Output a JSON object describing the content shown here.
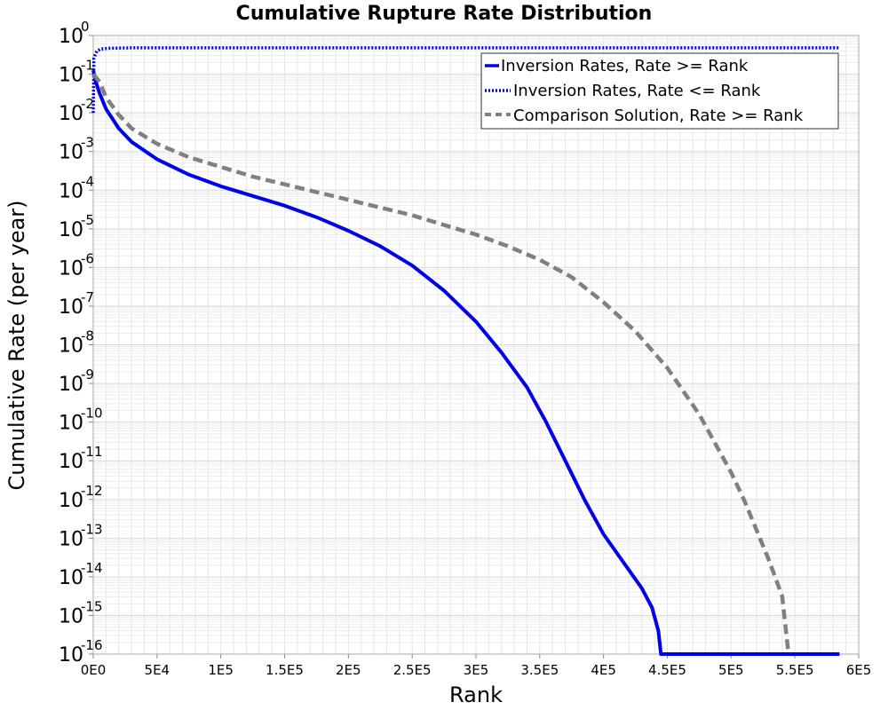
{
  "chart_data": {
    "type": "line",
    "title": "Cumulative Rupture Rate Distribution",
    "xlabel": "Rank",
    "ylabel": "Cumulative Rate (per year)",
    "xlim": [
      0,
      600000
    ],
    "ylim": [
      1e-16,
      1
    ],
    "yscale": "log",
    "grid": true,
    "legend_position": "top-right",
    "x_ticks": [
      {
        "value": 0,
        "label": "0E0"
      },
      {
        "value": 50000,
        "label": "5E4"
      },
      {
        "value": 100000,
        "label": "1E5"
      },
      {
        "value": 150000,
        "label": "1.5E5"
      },
      {
        "value": 200000,
        "label": "2E5"
      },
      {
        "value": 250000,
        "label": "2.5E5"
      },
      {
        "value": 300000,
        "label": "3E5"
      },
      {
        "value": 350000,
        "label": "3.5E5"
      },
      {
        "value": 400000,
        "label": "4E5"
      },
      {
        "value": 450000,
        "label": "4.5E5"
      },
      {
        "value": 500000,
        "label": "5E5"
      },
      {
        "value": 550000,
        "label": "5.5E5"
      },
      {
        "value": 600000,
        "label": "6E5"
      }
    ],
    "y_ticks": [
      {
        "value": 0,
        "base": "10",
        "exp": "0"
      },
      {
        "value": -1,
        "base": "10",
        "exp": "-1"
      },
      {
        "value": -2,
        "base": "10",
        "exp": "-2"
      },
      {
        "value": -3,
        "base": "10",
        "exp": "-3"
      },
      {
        "value": -4,
        "base": "10",
        "exp": "-4"
      },
      {
        "value": -5,
        "base": "10",
        "exp": "-5"
      },
      {
        "value": -6,
        "base": "10",
        "exp": "-6"
      },
      {
        "value": -7,
        "base": "10",
        "exp": "-7"
      },
      {
        "value": -8,
        "base": "10",
        "exp": "-8"
      },
      {
        "value": -9,
        "base": "10",
        "exp": "-9"
      },
      {
        "value": -10,
        "base": "10",
        "exp": "-10"
      },
      {
        "value": -11,
        "base": "10",
        "exp": "-11"
      },
      {
        "value": -12,
        "base": "10",
        "exp": "-12"
      },
      {
        "value": -13,
        "base": "10",
        "exp": "-13"
      },
      {
        "value": -14,
        "base": "10",
        "exp": "-14"
      },
      {
        "value": -15,
        "base": "10",
        "exp": "-15"
      },
      {
        "value": -16,
        "base": "10",
        "exp": "-16"
      }
    ],
    "series": [
      {
        "name": "Inversion Rates, Rate >= Rank",
        "color": "#0000e6",
        "style": "solid",
        "x": [
          0,
          2000,
          5000,
          10000,
          20000,
          30000,
          50000,
          75000,
          100000,
          125000,
          150000,
          175000,
          200000,
          225000,
          250000,
          275000,
          300000,
          320000,
          340000,
          355000,
          370000,
          385000,
          400000,
          415000,
          430000,
          438000,
          443000,
          445000,
          500000,
          585000
        ],
        "log10_y": [
          -0.9,
          -1.2,
          -1.5,
          -1.9,
          -2.4,
          -2.75,
          -3.2,
          -3.6,
          -3.9,
          -4.15,
          -4.4,
          -4.7,
          -5.05,
          -5.45,
          -5.95,
          -6.6,
          -7.4,
          -8.2,
          -9.1,
          -10.0,
          -11.0,
          -12.0,
          -12.9,
          -13.6,
          -14.3,
          -14.8,
          -15.4,
          -16.0,
          -16.0,
          -16.0
        ]
      },
      {
        "name": "Inversion Rates, Rate <= Rank",
        "color": "#0000e6",
        "style": "dotted",
        "x": [
          0,
          500,
          1500,
          3000,
          6000,
          12000,
          30000,
          100000,
          300000,
          585000
        ],
        "log10_y": [
          -2.0,
          -0.6,
          -0.5,
          -0.4,
          -0.35,
          -0.33,
          -0.32,
          -0.32,
          -0.32,
          -0.32
        ]
      },
      {
        "name": "Comparison Solution, Rate >= Rank",
        "color": "#808080",
        "style": "dashed",
        "x": [
          0,
          5000,
          10000,
          20000,
          30000,
          50000,
          75000,
          100000,
          125000,
          150000,
          175000,
          200000,
          225000,
          250000,
          275000,
          300000,
          325000,
          350000,
          375000,
          400000,
          425000,
          450000,
          475000,
          500000,
          510000,
          520000,
          530000,
          540000,
          545000
        ],
        "log10_y": [
          -1.0,
          -1.2,
          -1.6,
          -2.05,
          -2.4,
          -2.8,
          -3.15,
          -3.4,
          -3.65,
          -3.85,
          -4.05,
          -4.25,
          -4.45,
          -4.65,
          -4.9,
          -5.15,
          -5.45,
          -5.8,
          -6.25,
          -6.9,
          -7.65,
          -8.6,
          -9.8,
          -11.3,
          -12.0,
          -12.8,
          -13.6,
          -14.5,
          -16.0
        ]
      }
    ]
  }
}
